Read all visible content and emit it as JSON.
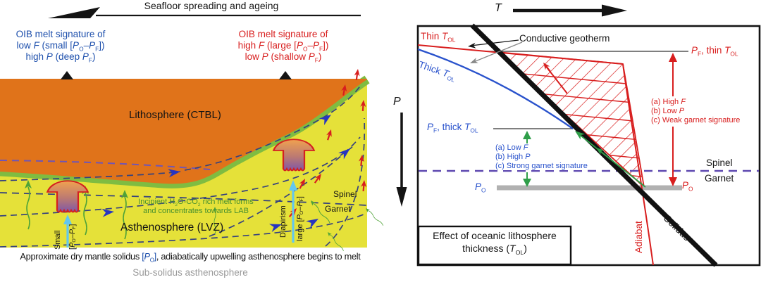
{
  "colors": {
    "accent_red": "#D81E1E",
    "accent_blue": "#1D4FAC",
    "line_blue": "#2952CC",
    "text_green": "#47902F",
    "text_gray": "#9A9A9A",
    "orange_lithosphere": "#E0731A",
    "green_lab_layer": "#7FBC41",
    "yellow_asthenosphere": "#E5E139",
    "navy_flowline": "#36427E",
    "arrow_blue": "#2735C0",
    "arrow_green": "#4FA338",
    "arrow_cyan": "#62C7EF",
    "purple_dashed": "#5E48B0",
    "gray_bar": "#B1B1B1",
    "plume_top": "#F0A24F",
    "plume_bottom": "#7E57A8"
  },
  "left": {
    "spreading": "Seafloor spreading and ageing",
    "oib_low_html": "OIB melt signature of<br>low <i>F</i> (small [<i>P</i><sub>O</sub>&#8211;<i>P</i><sub>F</sub>])<br>high <i>P</i> (deep <i>P</i><sub>F</sub>)",
    "oib_high_html": "OIB melt signature of<br>high <i>F</i> (large [<i>P</i><sub>O</sub>&#8211;<i>P</i><sub>F</sub>])<br>low <i>P</i> (shallow <i>P</i><sub>F</sub>)",
    "lithosphere": "Lithosphere (CTBL)",
    "asthenosphere": "Asthenosphere (LVZ)",
    "incipient_html": "Incipient H<sub>2</sub>O-CO<sub>2</sub> rich melt forms<br>and concentrates towards LAB",
    "small": "Small",
    "small_interval_html": "[<i>P</i><sub>O</sub>&#8211;<i>P</i><sub>F</sub>]",
    "diapirism": "Diapirism",
    "large_interval_html": "large [<i>P</i><sub>O</sub>&#8211;<i>P</i><sub>F</sub>]",
    "spinel": "Spinel",
    "garnet": "Garnet",
    "solidus_caption_pre": "Approximate dry mantle solidus ",
    "solidus_caption_po_html": "[<i>P</i><sub>O</sub>]",
    "solidus_caption_post": ", adiabatically upwelling asthenosphere begins to melt",
    "subsolidus": "Sub-solidus asthenosphere"
  },
  "right": {
    "t_axis": "T",
    "p_axis": "P",
    "thin_tol_html": "Thin <i>T</i><sub>OL</sub>",
    "thick_tol_html": "Thick <i>T</i><sub>OL</sub>",
    "conductive": "Conductive geotherm",
    "pf_thin_html": "<i>P</i><sub>F</sub>, thin <i>T</i><sub>OL</sub>",
    "pf_thick_html": "<i>P</i><sub>F</sub>, thick <i>T</i><sub>OL</sub>",
    "thin_effects_html": [
      "(a) High <i>F</i>",
      "(b) Low <i>P</i>",
      "(c) Weak garnet signature"
    ],
    "thick_effects_html": [
      "(a) Low <i>F</i>",
      "(b) High <i>P</i>",
      "(c) Strong garnet signature"
    ],
    "spinel": "Spinel",
    "garnet": "Garnet",
    "po_html": "<i>P</i><sub>O</sub>",
    "adiabat": "Adiabat",
    "solidus": "Solidus",
    "box_title_html": "Effect of oceanic lithosphere<br>thickness (<i>T</i><sub>OL</sub>)"
  }
}
